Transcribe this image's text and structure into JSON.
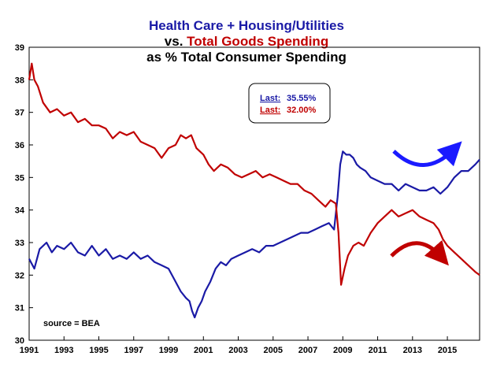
{
  "chart_data": {
    "type": "line",
    "title": {
      "line1": "Health Care + Housing/Utilities",
      "line2_prefix": "vs. ",
      "line2_highlight": "Total Goods Spending",
      "line3": "as % Total Consumer Spending"
    },
    "xlabel": "",
    "ylabel": "",
    "xlim": [
      1991,
      2016.85
    ],
    "ylim": [
      30,
      39
    ],
    "x_ticks": [
      "1991",
      "1993",
      "1995",
      "1997",
      "1999",
      "2001",
      "2003",
      "2005",
      "2007",
      "2009",
      "2011",
      "2013",
      "2015"
    ],
    "y_ticks": [
      "30",
      "31",
      "32",
      "33",
      "34",
      "35",
      "36",
      "37",
      "38",
      "39"
    ],
    "legend": {
      "position": "top-center",
      "items": [
        {
          "label": "Last:",
          "value": "35.55%",
          "color": "#1a1aa6"
        },
        {
          "label": "Last:",
          "value": "32.00%",
          "color": "#c00000"
        }
      ]
    },
    "annotation": "source = BEA",
    "series": [
      {
        "name": "Health Care + Housing/Utilities",
        "color": "#1a1aa6",
        "x": [
          1991.0,
          1991.3,
          1991.6,
          1992.0,
          1992.3,
          1992.6,
          1993.0,
          1993.4,
          1993.8,
          1994.2,
          1994.6,
          1995.0,
          1995.4,
          1995.8,
          1996.2,
          1996.6,
          1997.0,
          1997.4,
          1997.8,
          1998.2,
          1998.6,
          1999.0,
          1999.4,
          1999.7,
          2000.0,
          2000.2,
          2000.35,
          2000.5,
          2000.7,
          2000.9,
          2001.1,
          2001.4,
          2001.7,
          2002.0,
          2002.3,
          2002.6,
          2003.0,
          2003.4,
          2003.8,
          2004.2,
          2004.6,
          2005.0,
          2005.4,
          2005.8,
          2006.2,
          2006.6,
          2007.0,
          2007.4,
          2007.8,
          2008.2,
          2008.5,
          2008.7,
          2008.85,
          2009.0,
          2009.2,
          2009.4,
          2009.6,
          2009.8,
          2010.0,
          2010.3,
          2010.6,
          2011.0,
          2011.4,
          2011.8,
          2012.2,
          2012.6,
          2013.0,
          2013.4,
          2013.8,
          2014.2,
          2014.6,
          2015.0,
          2015.4,
          2015.8,
          2016.2,
          2016.6,
          2016.85
        ],
        "values": [
          32.5,
          32.2,
          32.8,
          33.0,
          32.7,
          32.9,
          32.8,
          33.0,
          32.7,
          32.6,
          32.9,
          32.6,
          32.8,
          32.5,
          32.6,
          32.5,
          32.7,
          32.5,
          32.6,
          32.4,
          32.3,
          32.2,
          31.8,
          31.5,
          31.3,
          31.2,
          30.9,
          30.7,
          31.0,
          31.2,
          31.5,
          31.8,
          32.2,
          32.4,
          32.3,
          32.5,
          32.6,
          32.7,
          32.8,
          32.7,
          32.9,
          32.9,
          33.0,
          33.1,
          33.2,
          33.3,
          33.3,
          33.4,
          33.5,
          33.6,
          33.4,
          34.4,
          35.4,
          35.8,
          35.7,
          35.7,
          35.6,
          35.4,
          35.3,
          35.2,
          35.0,
          34.9,
          34.8,
          34.8,
          34.6,
          34.8,
          34.7,
          34.6,
          34.6,
          34.7,
          34.5,
          34.7,
          35.0,
          35.2,
          35.2,
          35.4,
          35.55
        ]
      },
      {
        "name": "Total Goods Spending",
        "color": "#c00000",
        "x": [
          1991.0,
          1991.15,
          1991.3,
          1991.5,
          1991.8,
          1992.2,
          1992.6,
          1993.0,
          1993.4,
          1993.8,
          1994.2,
          1994.6,
          1995.0,
          1995.4,
          1995.8,
          1996.2,
          1996.6,
          1997.0,
          1997.4,
          1997.8,
          1998.2,
          1998.6,
          1999.0,
          1999.4,
          1999.7,
          2000.0,
          2000.3,
          2000.6,
          2001.0,
          2001.3,
          2001.6,
          2002.0,
          2002.4,
          2002.8,
          2003.2,
          2003.6,
          2004.0,
          2004.4,
          2004.8,
          2005.2,
          2005.6,
          2006.0,
          2006.4,
          2006.8,
          2007.2,
          2007.6,
          2008.0,
          2008.3,
          2008.6,
          2008.75,
          2008.9,
          2009.1,
          2009.3,
          2009.6,
          2009.9,
          2010.2,
          2010.6,
          2011.0,
          2011.4,
          2011.8,
          2012.2,
          2012.6,
          2013.0,
          2013.4,
          2013.8,
          2014.2,
          2014.5,
          2014.75,
          2015.0,
          2015.4,
          2015.8,
          2016.2,
          2016.6,
          2016.85
        ],
        "values": [
          38.0,
          38.5,
          38.0,
          37.8,
          37.3,
          37.0,
          37.1,
          36.9,
          37.0,
          36.7,
          36.8,
          36.6,
          36.6,
          36.5,
          36.2,
          36.4,
          36.3,
          36.4,
          36.1,
          36.0,
          35.9,
          35.6,
          35.9,
          36.0,
          36.3,
          36.2,
          36.3,
          35.9,
          35.7,
          35.4,
          35.2,
          35.4,
          35.3,
          35.1,
          35.0,
          35.1,
          35.2,
          35.0,
          35.1,
          35.0,
          34.9,
          34.8,
          34.8,
          34.6,
          34.5,
          34.3,
          34.1,
          34.3,
          34.2,
          33.3,
          31.7,
          32.2,
          32.6,
          32.9,
          33.0,
          32.9,
          33.3,
          33.6,
          33.8,
          34.0,
          33.8,
          33.9,
          34.0,
          33.8,
          33.7,
          33.6,
          33.4,
          33.1,
          32.9,
          32.7,
          32.5,
          32.3,
          32.1,
          32.0
        ]
      }
    ]
  }
}
